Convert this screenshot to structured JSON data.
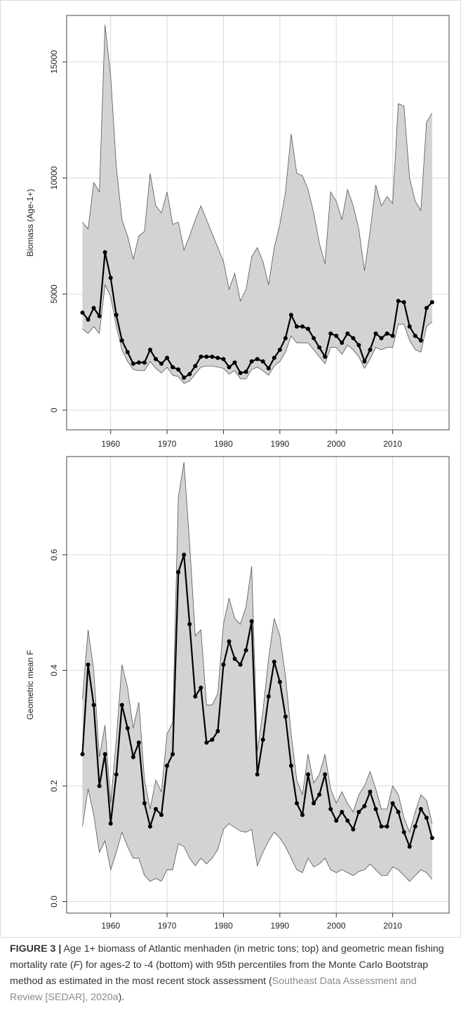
{
  "chart_data": [
    {
      "type": "line",
      "ylabel": "Biomass (Age-1+)",
      "color": "#000000",
      "band_color": "#d3d3d3",
      "grid": true,
      "xlim": [
        1952.2,
        2020
      ],
      "ylim": [
        -850,
        17000
      ],
      "xticks": [
        1960,
        1970,
        1980,
        1990,
        2000,
        2010
      ],
      "yticks": [
        0,
        5000,
        10000,
        15000
      ],
      "x": [
        1955,
        1956,
        1957,
        1958,
        1959,
        1960,
        1961,
        1962,
        1963,
        1964,
        1965,
        1966,
        1967,
        1968,
        1969,
        1970,
        1971,
        1972,
        1973,
        1974,
        1975,
        1976,
        1977,
        1978,
        1979,
        1980,
        1981,
        1982,
        1983,
        1984,
        1985,
        1986,
        1987,
        1988,
        1989,
        1990,
        1991,
        1992,
        1993,
        1994,
        1995,
        1996,
        1997,
        1998,
        1999,
        2000,
        2001,
        2002,
        2003,
        2004,
        2005,
        2006,
        2007,
        2008,
        2009,
        2010,
        2011,
        2012,
        2013,
        2014,
        2015,
        2016,
        2017
      ],
      "values": [
        4200,
        3900,
        4400,
        4050,
        6800,
        5700,
        4100,
        3000,
        2500,
        2000,
        2050,
        2050,
        2600,
        2200,
        2000,
        2250,
        1850,
        1750,
        1400,
        1550,
        1900,
        2300,
        2300,
        2300,
        2250,
        2200,
        1850,
        2050,
        1600,
        1650,
        2100,
        2200,
        2100,
        1800,
        2250,
        2600,
        3100,
        4100,
        3600,
        3600,
        3500,
        3100,
        2700,
        2300,
        3300,
        3200,
        2900,
        3300,
        3100,
        2800,
        2100,
        2600,
        3300,
        3100,
        3300,
        3200,
        4700,
        4650,
        3600,
        3200,
        3000,
        4400,
        4650
      ],
      "upper": [
        8100,
        7800,
        9800,
        9400,
        16600,
        14400,
        10500,
        8200,
        7500,
        6500,
        7500,
        7700,
        10200,
        8800,
        8500,
        9400,
        8000,
        8100,
        6900,
        7500,
        8200,
        8800,
        8200,
        7600,
        7000,
        6400,
        5200,
        5900,
        4700,
        5200,
        6600,
        7000,
        6400,
        5400,
        7000,
        8000,
        9400,
        11900,
        10200,
        10100,
        9500,
        8500,
        7200,
        6300,
        9400,
        9000,
        8200,
        9500,
        8800,
        7800,
        6000,
        7700,
        9700,
        8800,
        9200,
        8900,
        13200,
        13100,
        10000,
        9000,
        8600,
        12400,
        12800
      ],
      "lower": [
        3500,
        3300,
        3600,
        3300,
        5400,
        4900,
        3600,
        2600,
        2100,
        1750,
        1700,
        1700,
        2100,
        1800,
        1600,
        1850,
        1500,
        1450,
        1150,
        1250,
        1550,
        1850,
        1900,
        1900,
        1850,
        1800,
        1550,
        1700,
        1350,
        1350,
        1750,
        1850,
        1700,
        1500,
        1900,
        2100,
        2500,
        3200,
        2900,
        2900,
        2900,
        2600,
        2300,
        2000,
        2700,
        2700,
        2400,
        2800,
        2600,
        2300,
        1800,
        2200,
        2700,
        2600,
        2700,
        2700,
        3700,
        3700,
        3000,
        2600,
        2500,
        3600,
        3800
      ]
    },
    {
      "type": "line",
      "ylabel": "Geometric mean F",
      "color": "#000000",
      "band_color": "#d3d3d3",
      "grid": true,
      "xlim": [
        1952.2,
        2020
      ],
      "ylim": [
        -0.02,
        0.77
      ],
      "xticks": [
        1960,
        1970,
        1980,
        1990,
        2000,
        2010
      ],
      "yticks": [
        {
          "value": 0,
          "label": "0.0"
        },
        0.2,
        0.4,
        0.6
      ],
      "x": [
        1955,
        1956,
        1957,
        1958,
        1959,
        1960,
        1961,
        1962,
        1963,
        1964,
        1965,
        1966,
        1967,
        1968,
        1969,
        1970,
        1971,
        1972,
        1973,
        1974,
        1975,
        1976,
        1977,
        1978,
        1979,
        1980,
        1981,
        1982,
        1983,
        1984,
        1985,
        1986,
        1987,
        1988,
        1989,
        1990,
        1991,
        1992,
        1993,
        1994,
        1995,
        1996,
        1997,
        1998,
        1999,
        2000,
        2001,
        2002,
        2003,
        2004,
        2005,
        2006,
        2007,
        2008,
        2009,
        2010,
        2011,
        2012,
        2013,
        2014,
        2015,
        2016,
        2017
      ],
      "values": [
        0.255,
        0.41,
        0.34,
        0.2,
        0.255,
        0.135,
        0.22,
        0.34,
        0.3,
        0.25,
        0.275,
        0.17,
        0.13,
        0.16,
        0.15,
        0.235,
        0.255,
        0.57,
        0.6,
        0.48,
        0.355,
        0.37,
        0.275,
        0.28,
        0.295,
        0.41,
        0.45,
        0.42,
        0.41,
        0.435,
        0.485,
        0.22,
        0.28,
        0.355,
        0.415,
        0.38,
        0.32,
        0.235,
        0.17,
        0.15,
        0.22,
        0.17,
        0.185,
        0.22,
        0.16,
        0.14,
        0.155,
        0.14,
        0.125,
        0.155,
        0.165,
        0.19,
        0.16,
        0.13,
        0.13,
        0.17,
        0.155,
        0.12,
        0.095,
        0.13,
        0.16,
        0.145,
        0.11
      ],
      "upper": [
        0.35,
        0.47,
        0.4,
        0.25,
        0.305,
        0.17,
        0.28,
        0.41,
        0.37,
        0.3,
        0.345,
        0.21,
        0.16,
        0.21,
        0.19,
        0.29,
        0.31,
        0.7,
        0.76,
        0.62,
        0.46,
        0.47,
        0.34,
        0.34,
        0.36,
        0.48,
        0.525,
        0.49,
        0.48,
        0.51,
        0.58,
        0.26,
        0.33,
        0.42,
        0.49,
        0.46,
        0.39,
        0.29,
        0.21,
        0.185,
        0.255,
        0.205,
        0.22,
        0.255,
        0.195,
        0.17,
        0.19,
        0.17,
        0.155,
        0.185,
        0.2,
        0.225,
        0.195,
        0.16,
        0.16,
        0.2,
        0.185,
        0.145,
        0.12,
        0.155,
        0.185,
        0.175,
        0.135
      ],
      "lower": [
        0.13,
        0.195,
        0.15,
        0.085,
        0.105,
        0.055,
        0.085,
        0.12,
        0.095,
        0.075,
        0.075,
        0.045,
        0.035,
        0.04,
        0.035,
        0.055,
        0.055,
        0.1,
        0.095,
        0.075,
        0.062,
        0.075,
        0.065,
        0.075,
        0.09,
        0.125,
        0.135,
        0.128,
        0.122,
        0.12,
        0.125,
        0.062,
        0.085,
        0.105,
        0.12,
        0.11,
        0.095,
        0.075,
        0.055,
        0.05,
        0.075,
        0.06,
        0.065,
        0.075,
        0.055,
        0.05,
        0.055,
        0.05,
        0.045,
        0.052,
        0.055,
        0.065,
        0.055,
        0.045,
        0.045,
        0.06,
        0.055,
        0.045,
        0.035,
        0.045,
        0.055,
        0.05,
        0.038
      ]
    }
  ],
  "caption": {
    "label": "FIGURE 3 |",
    "text_1": " Age 1+ biomass of Atlantic menhaden (in metric tons; top) and geometric mean fishing mortality rate (",
    "italic": "F",
    "text_2": ") for ages-2 to -4 (bottom) with 95th percentiles from the Monte Carlo Bootstrap method as estimated in the most recent stock assessment (",
    "link": "Southeast Data Assessment and Review [SEDAR], 2020a",
    "text_3": ")."
  }
}
